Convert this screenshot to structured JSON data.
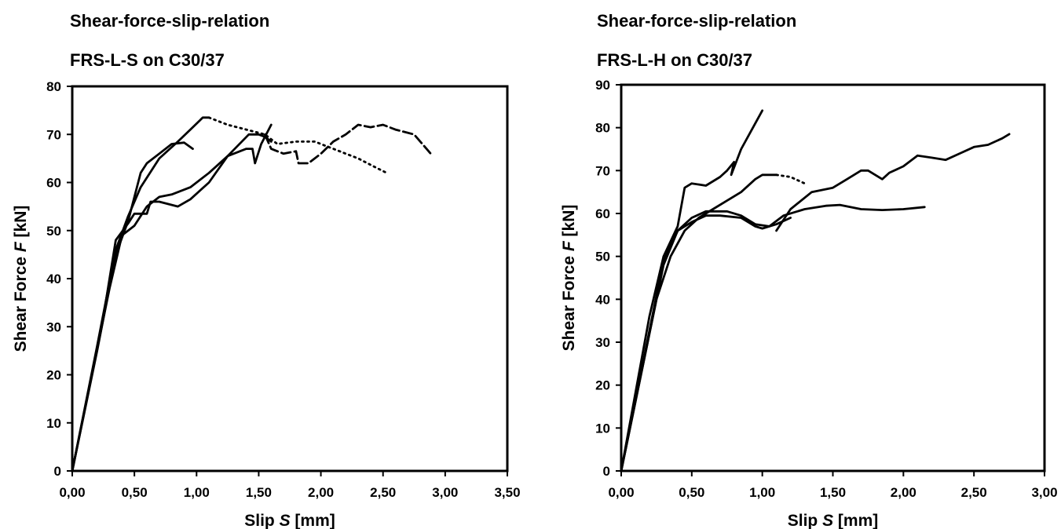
{
  "chart_data": [
    {
      "type": "line",
      "title": "Shear-force-slip-relation",
      "subtitle": "FRS-L-S on C30/37",
      "xlabel_prefix": "Slip ",
      "xlabel_symbol": "S",
      "xlabel_suffix": " [mm]",
      "ylabel_prefix": "Shear Force ",
      "ylabel_symbol": "F",
      "ylabel_suffix": " [kN]",
      "xlim": [
        0,
        3.5
      ],
      "ylim": [
        0,
        80
      ],
      "xticks": [
        0,
        0.5,
        1.0,
        1.5,
        2.0,
        2.5,
        3.0,
        3.5
      ],
      "xtick_labels": [
        "0,00",
        "0,50",
        "1,00",
        "1,50",
        "2,00",
        "2,50",
        "3,00",
        "3,50"
      ],
      "yticks": [
        0,
        10,
        20,
        30,
        40,
        50,
        60,
        70,
        80
      ],
      "ytick_labels": [
        "0",
        "10",
        "20",
        "30",
        "40",
        "50",
        "60",
        "70",
        "80"
      ],
      "grid": false,
      "legend": "none",
      "line_color": "#000000",
      "series": [
        {
          "style": "solid",
          "points": [
            [
              0,
              0
            ],
            [
              0.2,
              25
            ],
            [
              0.35,
              45
            ],
            [
              0.45,
              52
            ],
            [
              0.55,
              62
            ],
            [
              0.6,
              64
            ],
            [
              0.7,
              66
            ],
            [
              0.8,
              68
            ],
            [
              0.9,
              68.3
            ],
            [
              0.97,
              67
            ]
          ]
        },
        {
          "style": "solid",
          "points": [
            [
              0,
              0
            ],
            [
              0.2,
              26
            ],
            [
              0.35,
              46
            ],
            [
              0.45,
              53
            ],
            [
              0.55,
              59
            ],
            [
              0.7,
              65
            ],
            [
              0.85,
              68.5
            ],
            [
              0.95,
              71
            ],
            [
              1.05,
              73.5
            ],
            [
              1.1,
              73.5
            ]
          ]
        },
        {
          "style": "dotted",
          "points": [
            [
              1.1,
              73.5
            ],
            [
              1.25,
              72
            ],
            [
              1.4,
              71
            ],
            [
              1.55,
              70
            ],
            [
              1.65,
              68
            ],
            [
              1.8,
              68.5
            ],
            [
              1.95,
              68.5
            ],
            [
              2.1,
              67
            ],
            [
              2.3,
              65
            ],
            [
              2.45,
              63
            ],
            [
              2.53,
              62
            ]
          ]
        },
        {
          "style": "solid",
          "points": [
            [
              0,
              0
            ],
            [
              0.25,
              32
            ],
            [
              0.35,
              48
            ],
            [
              0.45,
              51.5
            ],
            [
              0.5,
              53.5
            ],
            [
              0.6,
              53.5
            ],
            [
              0.63,
              56
            ],
            [
              0.7,
              56
            ],
            [
              0.85,
              55
            ],
            [
              0.95,
              56.5
            ],
            [
              1.1,
              60
            ],
            [
              1.25,
              65.5
            ],
            [
              1.42,
              70
            ],
            [
              1.5,
              70
            ],
            [
              1.55,
              69.5
            ],
            [
              1.6,
              68.5
            ]
          ]
        },
        {
          "style": "solid",
          "points": [
            [
              0,
              0
            ],
            [
              0.3,
              38
            ],
            [
              0.4,
              49
            ],
            [
              0.5,
              51
            ],
            [
              0.6,
              55
            ],
            [
              0.7,
              57
            ],
            [
              0.8,
              57.5
            ],
            [
              0.95,
              59
            ],
            [
              1.1,
              62
            ],
            [
              1.25,
              65.5
            ],
            [
              1.4,
              67
            ],
            [
              1.45,
              67
            ],
            [
              1.47,
              64
            ],
            [
              1.52,
              68
            ],
            [
              1.6,
              72
            ]
          ]
        },
        {
          "style": "dashed",
          "points": [
            [
              1.55,
              70
            ],
            [
              1.6,
              67
            ],
            [
              1.7,
              66
            ],
            [
              1.8,
              66.5
            ],
            [
              1.82,
              64
            ],
            [
              1.9,
              64
            ],
            [
              2.0,
              66
            ],
            [
              2.1,
              68.5
            ],
            [
              2.2,
              70
            ],
            [
              2.3,
              72
            ],
            [
              2.4,
              71.5
            ],
            [
              2.5,
              72
            ],
            [
              2.6,
              71
            ],
            [
              2.75,
              70
            ],
            [
              2.85,
              67
            ],
            [
              2.9,
              65.5
            ]
          ]
        }
      ]
    },
    {
      "type": "line",
      "title": "Shear-force-slip-relation",
      "subtitle": "FRS-L-H on C30/37",
      "xlabel_prefix": "Slip ",
      "xlabel_symbol": "S",
      "xlabel_suffix": " [mm]",
      "ylabel_prefix": "Shear Force ",
      "ylabel_symbol": "F",
      "ylabel_suffix": " [kN]",
      "xlim": [
        0,
        3.0
      ],
      "ylim": [
        0,
        90
      ],
      "xticks": [
        0,
        0.5,
        1.0,
        1.5,
        2.0,
        2.5,
        3.0
      ],
      "xtick_labels": [
        "0,00",
        "0,50",
        "1,00",
        "1,50",
        "2,00",
        "2,50",
        "3,00"
      ],
      "yticks": [
        0,
        10,
        20,
        30,
        40,
        50,
        60,
        70,
        80,
        90
      ],
      "ytick_labels": [
        "0",
        "10",
        "20",
        "30",
        "40",
        "50",
        "60",
        "70",
        "80",
        "90"
      ],
      "grid": false,
      "legend": "none",
      "line_color": "#000000",
      "series": [
        {
          "style": "solid",
          "points": [
            [
              0,
              0
            ],
            [
              0.2,
              36
            ],
            [
              0.3,
              50
            ],
            [
              0.4,
              57
            ],
            [
              0.45,
              66
            ],
            [
              0.5,
              67
            ],
            [
              0.6,
              66.5
            ],
            [
              0.7,
              68.5
            ],
            [
              0.75,
              70
            ],
            [
              0.8,
              72
            ],
            [
              0.78,
              69
            ],
            [
              0.85,
              75
            ],
            [
              0.95,
              81
            ],
            [
              1.0,
              84
            ]
          ]
        },
        {
          "style": "solid",
          "points": [
            [
              0,
              0
            ],
            [
              0.25,
              40
            ],
            [
              0.35,
              50
            ],
            [
              0.45,
              56
            ],
            [
              0.55,
              59
            ],
            [
              0.65,
              61
            ],
            [
              0.75,
              63
            ],
            [
              0.85,
              65
            ],
            [
              0.95,
              68
            ],
            [
              1.0,
              69
            ],
            [
              1.1,
              69
            ]
          ]
        },
        {
          "style": "dotted",
          "points": [
            [
              1.1,
              69
            ],
            [
              1.2,
              68.5
            ],
            [
              1.3,
              67
            ]
          ]
        },
        {
          "style": "solid",
          "points": [
            [
              1.1,
              56
            ],
            [
              1.2,
              61
            ],
            [
              1.35,
              65
            ],
            [
              1.5,
              66
            ],
            [
              1.6,
              68
            ],
            [
              1.7,
              70
            ],
            [
              1.75,
              70
            ],
            [
              1.8,
              69
            ],
            [
              1.85,
              68
            ],
            [
              1.9,
              69.5
            ],
            [
              2.0,
              71
            ],
            [
              2.1,
              73.5
            ],
            [
              2.2,
              73
            ],
            [
              2.3,
              72.5
            ],
            [
              2.4,
              74
            ],
            [
              2.5,
              75.5
            ],
            [
              2.6,
              76
            ],
            [
              2.7,
              77.5
            ],
            [
              2.75,
              78.5
            ]
          ]
        },
        {
          "style": "solid",
          "points": [
            [
              0,
              0
            ],
            [
              0.3,
              48
            ],
            [
              0.4,
              56
            ],
            [
              0.5,
              59
            ],
            [
              0.6,
              60.5
            ],
            [
              0.75,
              60.5
            ],
            [
              0.85,
              59.5
            ],
            [
              0.95,
              57.5
            ],
            [
              1.05,
              57
            ],
            [
              1.15,
              59.5
            ],
            [
              1.3,
              61
            ],
            [
              1.45,
              61.8
            ],
            [
              1.55,
              62
            ],
            [
              1.7,
              61
            ],
            [
              1.85,
              60.8
            ],
            [
              2.0,
              61
            ],
            [
              2.15,
              61.5
            ]
          ]
        },
        {
          "style": "solid",
          "points": [
            [
              0,
              0
            ],
            [
              0.3,
              49
            ],
            [
              0.4,
              56
            ],
            [
              0.5,
              58
            ],
            [
              0.6,
              59.5
            ],
            [
              0.7,
              59.5
            ],
            [
              0.85,
              59
            ],
            [
              0.95,
              57
            ],
            [
              1.0,
              56.5
            ],
            [
              1.1,
              57.5
            ],
            [
              1.2,
              59
            ]
          ]
        }
      ]
    }
  ]
}
